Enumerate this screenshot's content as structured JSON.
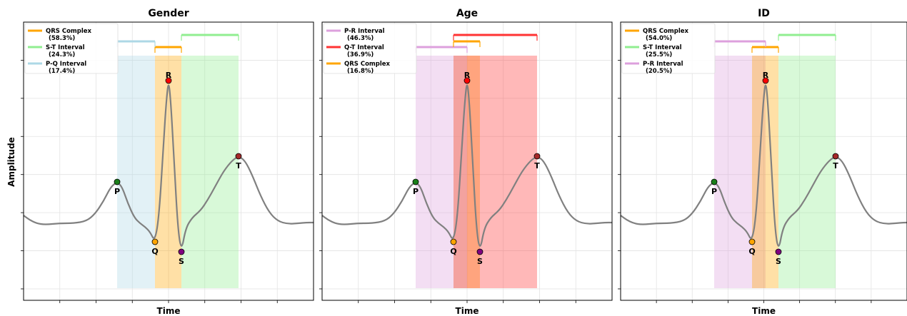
{
  "figure": {
    "ylabel": "Amplitude",
    "xlabel": "Time"
  },
  "chart_data": [
    {
      "type": "line",
      "title": "Gender",
      "xlabel": "Time",
      "ylabel": "Amplitude",
      "grid": true,
      "legend_position": "top-left",
      "waves": [
        {
          "label": "P",
          "color": "#1a7f1a"
        },
        {
          "label": "Q",
          "color": "#ffa500"
        },
        {
          "label": "R",
          "color": "#ff0000"
        },
        {
          "label": "S",
          "color": "#800080"
        },
        {
          "label": "T",
          "color": "#a52a2a"
        }
      ],
      "intervals": [
        {
          "name": "QRS Complex",
          "pct": "(58.3%)",
          "from": "Q",
          "to": "S",
          "color": "#ffa500"
        },
        {
          "name": "S-T Interval",
          "pct": "(24.3%)",
          "from": "S",
          "to": "T",
          "color": "#90ee90"
        },
        {
          "name": "P-Q Interval",
          "pct": "(17.4%)",
          "from": "P",
          "to": "Q",
          "color": "#add8e6"
        }
      ]
    },
    {
      "type": "line",
      "title": "Age",
      "xlabel": "Time",
      "ylabel": "",
      "grid": true,
      "legend_position": "top-left",
      "waves": [
        {
          "label": "P",
          "color": "#1a7f1a"
        },
        {
          "label": "Q",
          "color": "#ffa500"
        },
        {
          "label": "R",
          "color": "#ff0000"
        },
        {
          "label": "S",
          "color": "#800080"
        },
        {
          "label": "T",
          "color": "#a52a2a"
        }
      ],
      "intervals": [
        {
          "name": "P-R Interval",
          "pct": "(46.3%)",
          "from": "P",
          "to": "R",
          "color": "#dda0dd"
        },
        {
          "name": "Q-T Interval",
          "pct": "(36.9%)",
          "from": "Q",
          "to": "T",
          "color": "#ff3333"
        },
        {
          "name": "QRS Complex",
          "pct": "(16.8%)",
          "from": "Q",
          "to": "S",
          "color": "#ffa500"
        }
      ]
    },
    {
      "type": "line",
      "title": "ID",
      "xlabel": "Time",
      "ylabel": "",
      "grid": true,
      "legend_position": "top-left",
      "waves": [
        {
          "label": "P",
          "color": "#1a7f1a"
        },
        {
          "label": "Q",
          "color": "#ffa500"
        },
        {
          "label": "R",
          "color": "#ff0000"
        },
        {
          "label": "S",
          "color": "#800080"
        },
        {
          "label": "T",
          "color": "#a52a2a"
        }
      ],
      "intervals": [
        {
          "name": "QRS Complex",
          "pct": "(54.0%)",
          "from": "Q",
          "to": "S",
          "color": "#ffa500"
        },
        {
          "name": "S-T Interval",
          "pct": "(25.5%)",
          "from": "S",
          "to": "T",
          "color": "#90ee90"
        },
        {
          "name": "P-R Interval",
          "pct": "(20.5%)",
          "from": "P",
          "to": "R",
          "color": "#dda0dd"
        }
      ]
    }
  ]
}
